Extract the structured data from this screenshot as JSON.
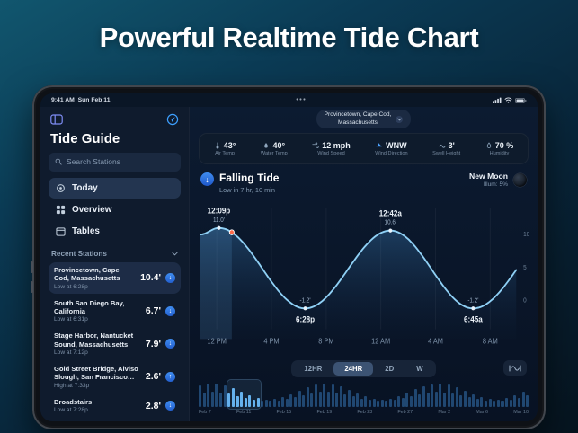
{
  "page": {
    "title": "Powerful Realtime Tide Chart"
  },
  "device": {
    "status_bar": {
      "time": "9:41 AM",
      "date": "Sun Feb 11",
      "menu_dots": "•••"
    }
  },
  "sidebar": {
    "app_title": "Tide Guide",
    "search_placeholder": "Search Stations",
    "nav": [
      {
        "label": "Today",
        "icon": "target-icon",
        "selected": true
      },
      {
        "label": "Overview",
        "icon": "grid-icon",
        "selected": false
      },
      {
        "label": "Tables",
        "icon": "calendar-icon",
        "selected": false
      }
    ],
    "recent_header": "Recent Stations",
    "stations": [
      {
        "name": "Provincetown, Cape Cod, Massachusetts",
        "sub": "Low at 6:28p",
        "value": "10.4'",
        "dir": "down",
        "selected": true
      },
      {
        "name": "South San Diego Bay, California",
        "sub": "Low at 6:31p",
        "value": "6.7'",
        "dir": "down",
        "selected": false
      },
      {
        "name": "Stage Harbor, Nantucket Sound, Massachusetts",
        "sub": "Low at 7:12p",
        "value": "7.9'",
        "dir": "down",
        "selected": false
      },
      {
        "name": "Gold Street Bridge, Alviso Slough, San Francisco Bay...",
        "sub": "High at 7:33p",
        "value": "2.6'",
        "dir": "up",
        "selected": false
      },
      {
        "name": "Broadstairs",
        "sub": "Low at 7:28p",
        "value": "2.8'",
        "dir": "down",
        "selected": false
      }
    ]
  },
  "main": {
    "location_pill": {
      "line1": "Provincetown, Cape Cod,",
      "line2": "Massachusetts"
    },
    "stats": [
      {
        "icon": "thermometer-icon",
        "value": "43°",
        "label": "Air Temp"
      },
      {
        "icon": "water-temp-icon",
        "value": "40°",
        "label": "Water Temp"
      },
      {
        "icon": "wind-icon",
        "value": "12 mph",
        "label": "Wind Speed"
      },
      {
        "icon": "wind-direction-arrow-icon",
        "value": "WNW",
        "label": "Wind Direction"
      },
      {
        "icon": "swell-icon",
        "value": "3'",
        "label": "Swell Height"
      },
      {
        "icon": "humidity-icon",
        "value": "70 %",
        "label": "Humidity"
      }
    ],
    "tide_status": {
      "title": "Falling Tide",
      "subtitle": "Low in 7 hr, 10 min"
    },
    "moon": {
      "phase": "New Moon",
      "illumination": "Illum: 5%"
    },
    "range_tabs": [
      "12HR",
      "24HR",
      "2D",
      "W"
    ],
    "range_selected": "24HR"
  },
  "chart_data": {
    "type": "line",
    "title": "24-hour tide height curve (ft)",
    "x_domain_hours": [
      10.8,
      33.9
    ],
    "x_ticks": [
      {
        "t": 12,
        "label": "12 PM"
      },
      {
        "t": 16,
        "label": "4 PM"
      },
      {
        "t": 20,
        "label": "8 PM"
      },
      {
        "t": 24,
        "label": "12 AM"
      },
      {
        "t": 28,
        "label": "4 AM"
      },
      {
        "t": 32,
        "label": "8 AM"
      }
    ],
    "y_ticks": [
      {
        "v": 10,
        "label": "10"
      },
      {
        "v": 5,
        "label": "5"
      },
      {
        "v": 0,
        "label": "0"
      }
    ],
    "ylim": [
      -3.2,
      13.5
    ],
    "points": [
      {
        "t": 10.8,
        "h": 10.0
      },
      {
        "t": 12.15,
        "h": 11.0,
        "type": "high",
        "time_label": "12:09p",
        "height_label": "11.0'"
      },
      {
        "t": 18.47,
        "h": -1.2,
        "type": "low",
        "time_label": "6:28p",
        "height_label": "-1.2'"
      },
      {
        "t": 24.7,
        "h": 10.6,
        "type": "high",
        "time_label": "12:42a",
        "height_label": "10.6'"
      },
      {
        "t": 30.75,
        "h": -1.2,
        "type": "low",
        "time_label": "6:45a",
        "height_label": "-1.2'"
      },
      {
        "t": 37.2,
        "h": 10.9
      }
    ],
    "now_marker": {
      "t": 13.1
    }
  },
  "scrubber": {
    "bar_count": 80,
    "selected_range": [
      7,
      14
    ],
    "dates": [
      "Feb 7",
      "Feb 11",
      "Feb 15",
      "Feb 19",
      "Feb 23",
      "Feb 27",
      "Mar 2",
      "Mar 6",
      "Mar 10"
    ]
  }
}
